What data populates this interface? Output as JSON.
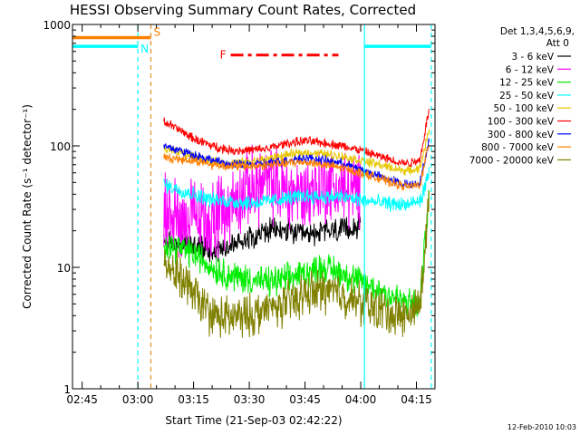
{
  "chart_data": {
    "type": "line",
    "title": "HESSI Observing Summary Count Rates, Corrected",
    "xlabel": "Start Time (21-Sep-03 02:42:22)",
    "ylabel": "Corrected Count Rate (s⁻¹ detector⁻¹)",
    "yscale": "log",
    "ylim": [
      1,
      1000
    ],
    "xlim_minutes": [
      162.4,
      260
    ],
    "x_ticks": [
      {
        "minutes": 165,
        "label": "02:45"
      },
      {
        "minutes": 180,
        "label": "03:00"
      },
      {
        "minutes": 195,
        "label": "03:15"
      },
      {
        "minutes": 210,
        "label": "03:30"
      },
      {
        "minutes": 225,
        "label": "03:45"
      },
      {
        "minutes": 240,
        "label": "04:00"
      },
      {
        "minutes": 255,
        "label": "04:15"
      }
    ],
    "y_ticks": [
      {
        "value": 1,
        "label": "1"
      },
      {
        "value": 10,
        "label": "10"
      },
      {
        "value": 100,
        "label": "100"
      },
      {
        "value": 1000,
        "label": "1000"
      }
    ],
    "legend_header": [
      "Det 1,3,4,5,6,9,",
      "Att 0"
    ],
    "legend_placement": "right",
    "grid": false,
    "series": [
      {
        "name": "3 - 6 keV",
        "color": "#000000",
        "noise": 0.08,
        "x": [
          187,
          195,
          200,
          205,
          210,
          215,
          220,
          225,
          230,
          235,
          240
        ],
        "values": [
          16,
          15,
          14,
          15,
          18,
          20,
          20,
          18,
          20,
          20,
          22
        ]
      },
      {
        "name": "6 - 12 keV",
        "color": "#ff00ff",
        "noise": 0.25,
        "x": [
          187,
          195,
          200,
          205,
          210,
          215,
          220,
          225,
          230,
          235,
          240
        ],
        "values": [
          28,
          25,
          24,
          32,
          45,
          50,
          42,
          40,
          48,
          45,
          40
        ]
      },
      {
        "name": "12 - 25 keV",
        "color": "#00ee00",
        "noise": 0.1,
        "x": [
          187,
          195,
          200,
          205,
          210,
          215,
          220,
          225,
          230,
          235,
          240,
          245,
          250,
          253,
          256,
          258.5
        ],
        "values": [
          16,
          13,
          10,
          8.5,
          8,
          7.5,
          8,
          9,
          10,
          9,
          7.5,
          6.5,
          5.5,
          5,
          5,
          45
        ]
      },
      {
        "name": "25 - 50 keV",
        "color": "#00ffff",
        "noise": 0.05,
        "x": [
          187,
          195,
          200,
          205,
          210,
          215,
          220,
          225,
          230,
          235,
          240,
          245,
          250,
          253,
          256,
          258.5
        ],
        "values": [
          48,
          40,
          36,
          35,
          34,
          35,
          37,
          39,
          38,
          38,
          36,
          34,
          33,
          33,
          35,
          60
        ]
      },
      {
        "name": "50 - 100 keV",
        "color": "#e8c800",
        "noise": 0.03,
        "x": [
          187,
          195,
          200,
          205,
          210,
          215,
          220,
          225,
          230,
          235,
          240,
          245,
          250,
          253,
          256,
          258.5
        ],
        "values": [
          95,
          82,
          74,
          72,
          74,
          78,
          84,
          88,
          86,
          82,
          76,
          70,
          64,
          62,
          66,
          140
        ]
      },
      {
        "name": "100 - 300 keV",
        "color": "#ff0000",
        "noise": 0.03,
        "x": [
          187,
          195,
          200,
          205,
          210,
          215,
          220,
          225,
          230,
          235,
          240,
          245,
          250,
          253,
          256,
          258.5
        ],
        "values": [
          160,
          115,
          100,
          92,
          92,
          95,
          105,
          110,
          106,
          100,
          92,
          82,
          74,
          72,
          78,
          210
        ]
      },
      {
        "name": "300 - 800 keV",
        "color": "#0000ff",
        "noise": 0.03,
        "x": [
          187,
          195,
          200,
          205,
          210,
          215,
          220,
          225,
          230,
          235,
          240,
          245,
          250,
          253,
          256,
          258.5
        ],
        "values": [
          100,
          85,
          76,
          70,
          70,
          72,
          76,
          80,
          76,
          72,
          64,
          56,
          50,
          48,
          50,
          115
        ]
      },
      {
        "name": "800 - 7000 keV",
        "color": "#ff8000",
        "noise": 0.03,
        "x": [
          187,
          195,
          200,
          205,
          210,
          215,
          220,
          225,
          230,
          235,
          240,
          245,
          250,
          253,
          256,
          258.5
        ],
        "values": [
          80,
          76,
          70,
          68,
          68,
          70,
          72,
          74,
          70,
          66,
          60,
          54,
          48,
          46,
          48,
          110
        ]
      },
      {
        "name": "7000 - 20000 keV",
        "color": "#808000",
        "noise": 0.14,
        "x": [
          187,
          195,
          200,
          205,
          210,
          215,
          220,
          225,
          230,
          235,
          240,
          245,
          250,
          253,
          256,
          258.5
        ],
        "values": [
          12,
          6,
          4,
          3.8,
          4,
          4.5,
          5,
          6,
          6.5,
          6,
          5,
          4.5,
          4,
          4,
          5,
          40
        ]
      }
    ],
    "state_bars": [
      {
        "label": "S",
        "color": "#ff8000",
        "value": 780,
        "x_start": 162.4,
        "x_end": 183.5
      },
      {
        "label": "N",
        "color": "#00ffff",
        "value": 660,
        "x_start": 162.4,
        "x_end": 180
      },
      {
        "label": "",
        "color": "#00ffff",
        "value": 660,
        "x_start": 241,
        "x_end": 259
      }
    ],
    "flare_marker": {
      "label": "F",
      "color": "#ff0000",
      "value": 560,
      "x_start": 205,
      "x_end": 234
    },
    "vertical_markers": [
      {
        "minutes": 180,
        "color": "#00ffff",
        "style": "dashed"
      },
      {
        "minutes": 183.5,
        "color": "#e09020",
        "style": "dashed"
      },
      {
        "minutes": 241,
        "color": "#00ffff",
        "style": "solid"
      },
      {
        "minutes": 259,
        "color": "#00ffff",
        "style": "dashed"
      }
    ]
  },
  "footer": {
    "date_stamp": "12-Feb-2010 10:03"
  }
}
